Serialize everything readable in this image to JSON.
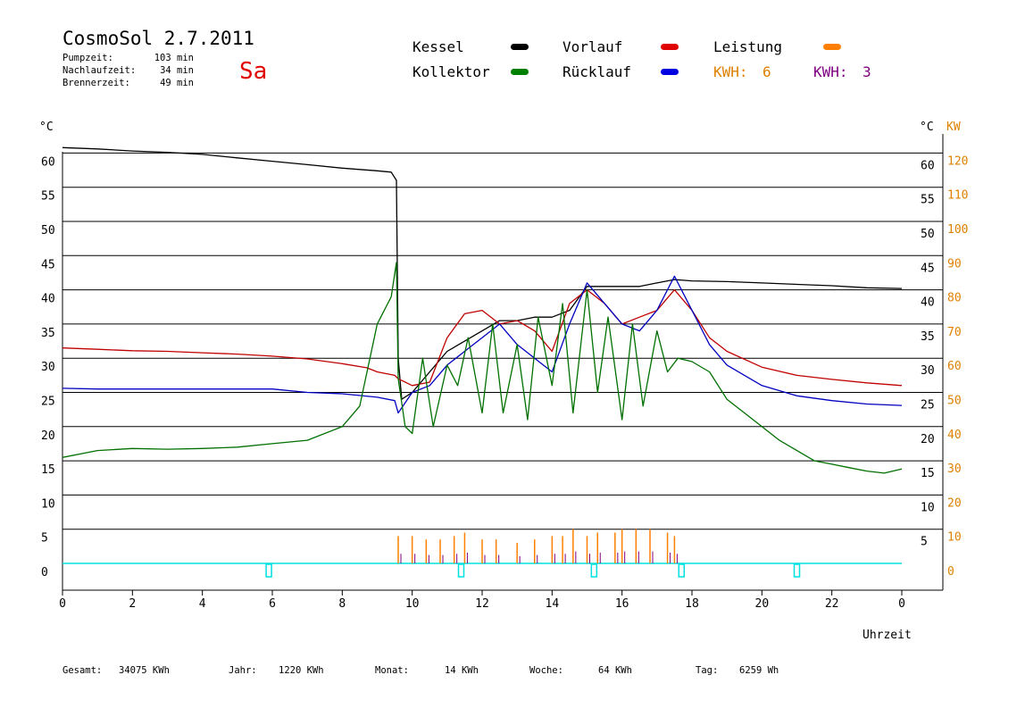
{
  "header": {
    "title": "CosmoSol 2.7.2011",
    "day": "Sa",
    "stats": [
      {
        "label": "Pumpzeit:",
        "value": "103 min"
      },
      {
        "label": "Nachlaufzeit:",
        "value": "34 min"
      },
      {
        "label": "Brennerzeit:",
        "value": "49 min"
      }
    ]
  },
  "legend": {
    "items": [
      {
        "label": "Kessel",
        "color": "#000000"
      },
      {
        "label": "Vorlauf",
        "color": "#e00000"
      },
      {
        "label": "Leistung",
        "color": "#ff8000"
      },
      {
        "label": "Kollektor",
        "color": "#008000"
      },
      {
        "label": "Rücklauf",
        "color": "#0000e0"
      }
    ],
    "kwh": [
      {
        "label": "KWH:",
        "value": "6",
        "color": "#e08000"
      },
      {
        "label": "KWH:",
        "value": "3",
        "color": "#800080"
      }
    ]
  },
  "colors": {
    "kessel": "#000000",
    "vorlauf": "#c00000",
    "ruecklauf": "#0000c0",
    "kollektor": "#007000",
    "leistung": "#ff8000",
    "leistung2": "#800080",
    "baseline": "#00e0e0",
    "axis_kw": "#e08000"
  },
  "chart_data": {
    "type": "line",
    "x_unit_label": "Uhrzeit",
    "left_unit": "°C",
    "right_unit": "°C",
    "right_unit2": "KW",
    "x_ticks": [
      "0",
      "2",
      "4",
      "6",
      "8",
      "10",
      "12",
      "14",
      "16",
      "18",
      "20",
      "22",
      "0"
    ],
    "y_ticks_left": [
      "0",
      "5",
      "10",
      "15",
      "20",
      "25",
      "30",
      "35",
      "40",
      "45",
      "50",
      "55",
      "60"
    ],
    "y_ticks_right": [
      "5",
      "10",
      "15",
      "20",
      "25",
      "30",
      "35",
      "40",
      "45",
      "50",
      "55",
      "60"
    ],
    "y_ticks_kw": [
      "0",
      "10",
      "20",
      "30",
      "40",
      "50",
      "60",
      "70",
      "80",
      "90",
      "100",
      "110",
      "120"
    ],
    "xlim": [
      0,
      24
    ],
    "ylim": [
      0,
      60
    ],
    "grid": true,
    "series": [
      {
        "name": "Kessel",
        "key": "kessel",
        "x": [
          0,
          1,
          2,
          3,
          4,
          5,
          6,
          7,
          8,
          9,
          9.4,
          9.55,
          9.6,
          9.7,
          10,
          11,
          12,
          12.5,
          13,
          13.5,
          14,
          14.5,
          15,
          15.5,
          16,
          16.5,
          17,
          17.5,
          18,
          19,
          20,
          21,
          22,
          23,
          24
        ],
        "y": [
          60.8,
          60.6,
          60.3,
          60.1,
          59.8,
          59.3,
          58.8,
          58.3,
          57.8,
          57.4,
          57.2,
          56,
          30,
          24,
          25,
          31,
          34,
          35.5,
          35.5,
          36,
          36,
          37,
          40.5,
          40.5,
          40.5,
          40.5,
          41,
          41.5,
          41.3,
          41.2,
          41,
          40.8,
          40.6,
          40.3,
          40.2
        ]
      },
      {
        "name": "Vorlauf",
        "key": "vorlauf",
        "x": [
          0,
          1,
          2,
          3,
          4,
          5,
          6,
          7,
          8,
          8.7,
          9,
          9.5,
          9.6,
          10,
          10.5,
          11,
          11.5,
          12,
          12.5,
          13,
          13.5,
          14,
          14.5,
          15,
          15.5,
          16,
          16.5,
          17,
          17.5,
          18,
          18.5,
          19,
          20,
          21,
          22,
          23,
          24
        ],
        "y": [
          31.5,
          31.3,
          31.1,
          31,
          30.8,
          30.6,
          30.3,
          29.9,
          29.2,
          28.6,
          28,
          27.5,
          27,
          26,
          26.5,
          33,
          36.5,
          37,
          35,
          35.5,
          34,
          31,
          38,
          40,
          38,
          35,
          36,
          37,
          40,
          37,
          33,
          31,
          28.7,
          27.5,
          26.9,
          26.4,
          26
        ]
      },
      {
        "name": "Rücklauf",
        "key": "ruecklauf",
        "x": [
          0,
          1,
          2,
          3,
          4,
          5,
          6,
          7,
          8,
          9,
          9.5,
          9.6,
          10,
          10.5,
          11,
          11.5,
          12,
          12.5,
          13,
          13.5,
          14,
          14.5,
          15,
          15.5,
          16,
          16.5,
          17,
          17.5,
          18,
          18.5,
          19,
          20,
          21,
          22,
          23,
          24
        ],
        "y": [
          25.6,
          25.5,
          25.5,
          25.5,
          25.5,
          25.5,
          25.5,
          25,
          24.8,
          24.3,
          23.8,
          22,
          25,
          26,
          29,
          31,
          33,
          35,
          32,
          30,
          28,
          35,
          41,
          38,
          35,
          34,
          37,
          42,
          37,
          32,
          29,
          26,
          24.5,
          23.8,
          23.3,
          23.1
        ]
      },
      {
        "name": "Kollektor",
        "key": "kollektor",
        "x": [
          0,
          1,
          2,
          3,
          4,
          5,
          6,
          7,
          8,
          8.5,
          9,
          9.4,
          9.55,
          9.6,
          9.8,
          10,
          10.3,
          10.6,
          11,
          11.3,
          11.6,
          12,
          12.3,
          12.6,
          13,
          13.3,
          13.6,
          14,
          14.3,
          14.6,
          15,
          15.3,
          15.6,
          16,
          16.3,
          16.6,
          17,
          17.3,
          17.6,
          18,
          18.5,
          19,
          19.5,
          20,
          20.5,
          21,
          21.5,
          22,
          22.5,
          23,
          23.5,
          24
        ],
        "y": [
          15.5,
          16.5,
          16.8,
          16.7,
          16.8,
          17,
          17.5,
          18,
          20,
          23,
          35,
          39,
          44,
          27,
          20,
          19,
          30,
          20,
          29,
          26,
          33,
          22,
          35,
          22,
          32,
          21,
          36,
          26,
          38,
          22,
          40,
          25,
          36,
          21,
          35,
          23,
          34,
          28,
          30,
          29.5,
          28,
          24,
          22,
          20,
          18,
          16.5,
          15,
          14.5,
          14,
          13.5,
          13.2,
          13.8
        ]
      }
    ],
    "power": {
      "name": "Leistung",
      "x": [
        9.6,
        10,
        10.4,
        10.8,
        11.2,
        11.5,
        12,
        12.4,
        13,
        13.5,
        14,
        14.3,
        14.6,
        15,
        15.3,
        15.8,
        16,
        16.4,
        16.8,
        17.3,
        17.5
      ],
      "y": [
        4,
        4,
        3.5,
        3.5,
        4,
        4.5,
        3.5,
        3.5,
        3,
        3.5,
        4,
        4,
        5,
        4,
        4.5,
        4.5,
        5,
        5,
        5,
        4.5,
        4
      ]
    },
    "annotations": [
      "",
      "",
      "",
      "",
      ""
    ]
  },
  "footer": {
    "items": [
      {
        "label": "Gesamt:",
        "value": "34075 KWh"
      },
      {
        "label": "Jahr:",
        "value": "1220 KWh"
      },
      {
        "label": "Monat:",
        "value": "14 KWh"
      },
      {
        "label": "Woche:",
        "value": "64 KWh"
      },
      {
        "label": "Tag:",
        "value": "6259 Wh"
      }
    ]
  }
}
